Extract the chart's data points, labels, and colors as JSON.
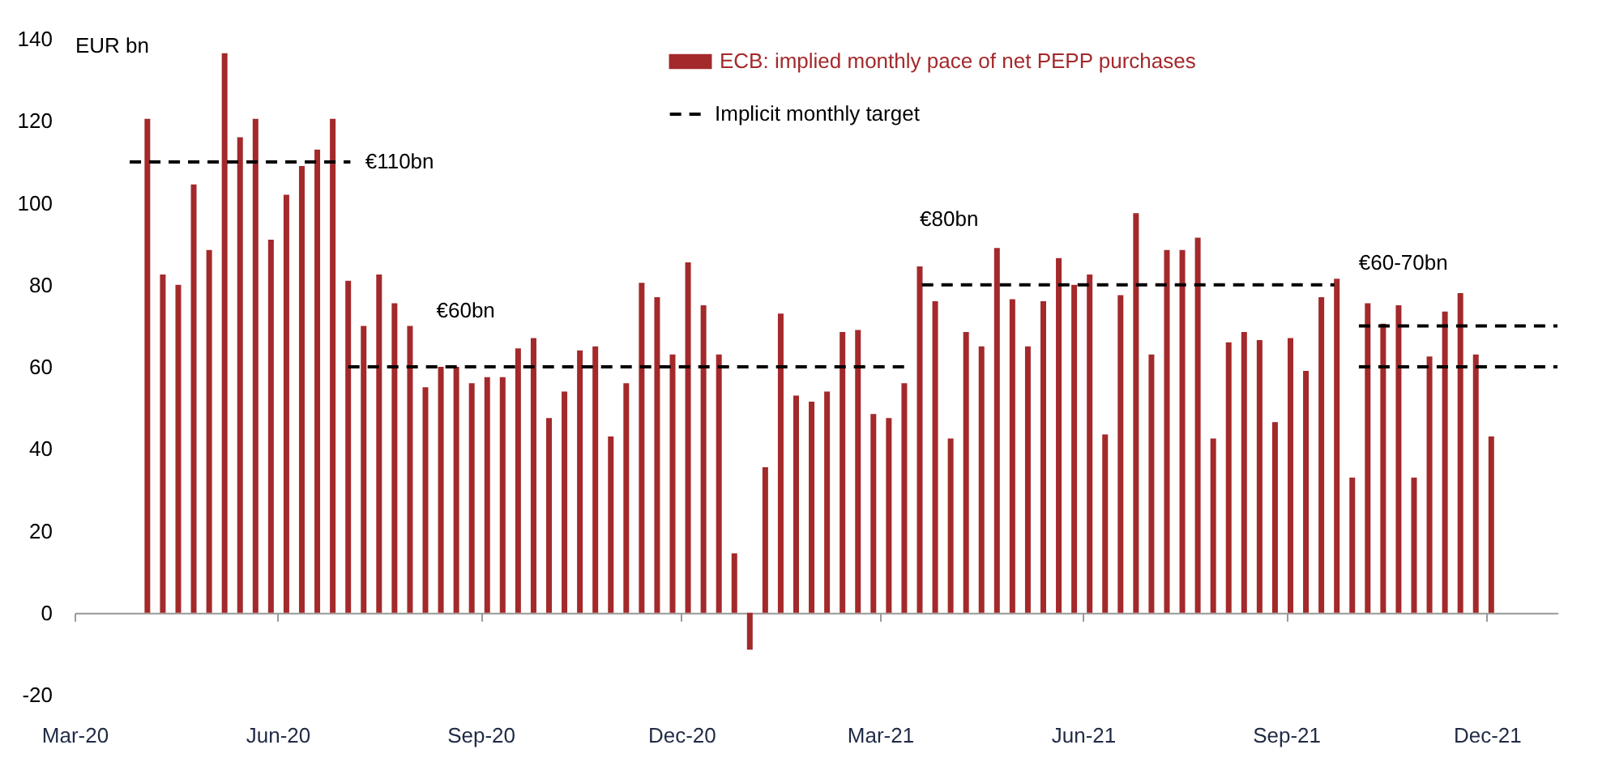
{
  "chart_data": {
    "type": "bar",
    "ylabel": "EUR bn",
    "legend": "top",
    "line_style": "dashed",
    "x": [
      "2020-04-03",
      "2020-04-10",
      "2020-04-17",
      "2020-04-24",
      "2020-05-01",
      "2020-05-08",
      "2020-05-15",
      "2020-05-22",
      "2020-05-29",
      "2020-06-05",
      "2020-06-12",
      "2020-06-19",
      "2020-06-26",
      "2020-07-03",
      "2020-07-10",
      "2020-07-17",
      "2020-07-24",
      "2020-07-31",
      "2020-08-07",
      "2020-08-14",
      "2020-08-21",
      "2020-08-28",
      "2020-09-04",
      "2020-09-11",
      "2020-09-18",
      "2020-09-25",
      "2020-10-02",
      "2020-10-09",
      "2020-10-16",
      "2020-10-23",
      "2020-10-30",
      "2020-11-06",
      "2020-11-13",
      "2020-11-20",
      "2020-11-27",
      "2020-12-04",
      "2020-12-11",
      "2020-12-18",
      "2020-12-25",
      "2021-01-01",
      "2021-01-08",
      "2021-01-15",
      "2021-01-22",
      "2021-01-29",
      "2021-02-05",
      "2021-02-12",
      "2021-02-19",
      "2021-02-26",
      "2021-03-05",
      "2021-03-12",
      "2021-03-19",
      "2021-03-26",
      "2021-04-02",
      "2021-04-09",
      "2021-04-16",
      "2021-04-23",
      "2021-04-30",
      "2021-05-07",
      "2021-05-14",
      "2021-05-21",
      "2021-05-28",
      "2021-06-04",
      "2021-06-11",
      "2021-06-18",
      "2021-06-25",
      "2021-07-02",
      "2021-07-09",
      "2021-07-16",
      "2021-07-23",
      "2021-07-30",
      "2021-08-06",
      "2021-08-13",
      "2021-08-20",
      "2021-08-27",
      "2021-09-03",
      "2021-09-10",
      "2021-09-17",
      "2021-09-24",
      "2021-10-01",
      "2021-10-08",
      "2021-10-15",
      "2021-10-22",
      "2021-10-29",
      "2021-11-05",
      "2021-11-12",
      "2021-11-19",
      "2021-11-26",
      "2021-12-03"
    ],
    "series": [
      {
        "name": "ECB: implied monthly pace of net PEPP purchases",
        "color": "#a3292b",
        "values": [
          120.5,
          82.5,
          80,
          104.5,
          88.5,
          136.5,
          116,
          120.5,
          91,
          102,
          109,
          113,
          120.5,
          81,
          70,
          82.5,
          75.5,
          70,
          55,
          60,
          60,
          56,
          57.5,
          57.5,
          64.5,
          67,
          47.5,
          54,
          64,
          65,
          43,
          56,
          80.5,
          77,
          63,
          85.5,
          75,
          63,
          14.5,
          -9,
          35.5,
          73,
          53,
          51.5,
          54,
          68.5,
          69,
          48.5,
          47.5,
          56,
          84.5,
          76,
          42.5,
          68.5,
          65,
          89,
          76.5,
          65,
          76,
          86.5,
          80,
          82.5,
          43.5,
          77.5,
          97.5,
          63,
          88.5,
          88.5,
          91.5,
          42.5,
          66,
          68.5,
          66.5,
          46.5,
          67,
          59,
          77,
          81.5,
          33,
          75.5,
          70.5,
          75,
          33,
          62.5,
          73.5,
          78,
          63,
          43
        ]
      },
      {
        "name": "Implicit monthly target",
        "type": "line",
        "color": "#000000",
        "x": [
          "2020-03-26",
          "2020-07-04"
        ],
        "values": [
          110,
          110
        ]
      },
      {
        "type": "line",
        "color": "#000000",
        "x": [
          "2020-07-03",
          "2021-03-15"
        ],
        "values": [
          60,
          60
        ]
      },
      {
        "type": "line",
        "color": "#000000",
        "x": [
          "2021-03-20",
          "2021-09-23"
        ],
        "values": [
          80,
          80
        ]
      },
      {
        "type": "line",
        "color": "#000000",
        "x": [
          "2021-10-04",
          "2022-01-02"
        ],
        "values": [
          70,
          70
        ]
      },
      {
        "type": "line",
        "color": "#000000",
        "x": [
          "2021-10-04",
          "2022-01-02"
        ],
        "values": [
          60,
          60
        ]
      }
    ],
    "xlim": [
      "2020-03-01",
      "2022-01-02"
    ],
    "xticks": [
      {
        "value": "2020-03-01",
        "label": "Mar-20"
      },
      {
        "value": "2020-06-01",
        "label": "Jun-20"
      },
      {
        "value": "2020-09-01",
        "label": "Sep-20"
      },
      {
        "value": "2020-12-01",
        "label": "Dec-20"
      },
      {
        "value": "2021-03-01",
        "label": "Mar-21"
      },
      {
        "value": "2021-06-01",
        "label": "Jun-21"
      },
      {
        "value": "2021-09-01",
        "label": "Sep-21"
      },
      {
        "value": "2021-12-01",
        "label": "Dec-21"
      }
    ],
    "ylim": [
      -20,
      140
    ],
    "yticks": [
      -20,
      0,
      20,
      40,
      60,
      80,
      100,
      120,
      140
    ],
    "annotations": [
      "€110bn",
      "€60bn",
      "€80bn",
      "€60-70bn"
    ]
  }
}
